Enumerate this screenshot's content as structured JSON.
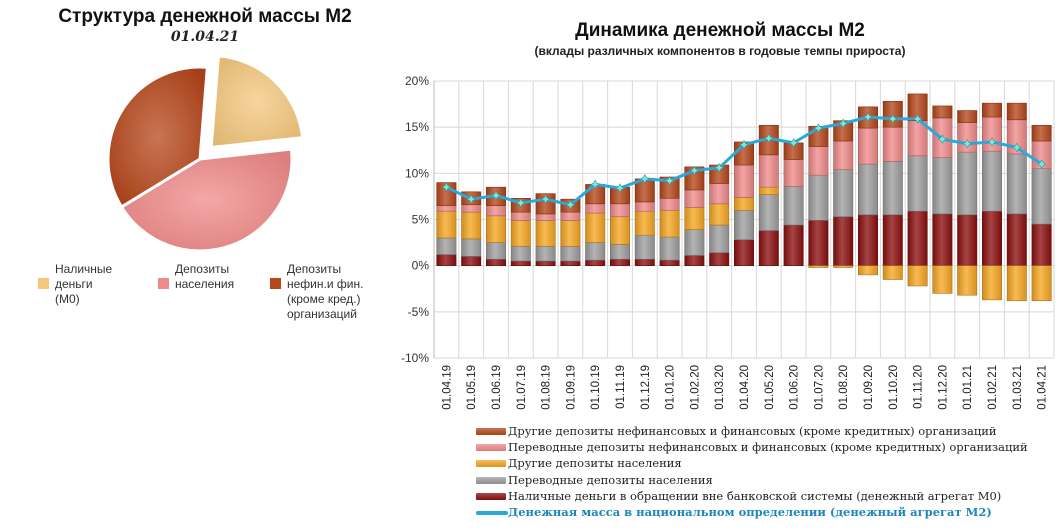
{
  "pie": {
    "title": "Структура денежной массы М2",
    "date": "01.04.21",
    "legend": [
      {
        "label": "Наличные\nденьги\n(М0)",
        "color": "#f5c77e"
      },
      {
        "label": "Депозиты\nнаселения",
        "color": "#f08a8a"
      },
      {
        "label": "Депозиты\nнефин.и фин.\n(кроме кред.)\nорганизаций",
        "color": "#b5471b"
      }
    ]
  },
  "bar": {
    "title": "Динамика денежной массы М2",
    "subtitle": "(вклады различных компонентов в годовые темпы прироста)",
    "legend": [
      {
        "label": "Другие депозиты нефинансовых и финансовых (кроме кредитных)  организаций",
        "color": "#b5471b",
        "kind": "bar"
      },
      {
        "label": "Переводные депозиты нефинансовых и финансовых (кроме кредитных)  организаций",
        "color": "#f08a8a",
        "kind": "bar"
      },
      {
        "label": "Другие депозиты населения",
        "color": "#f5a623",
        "kind": "bar"
      },
      {
        "label": "Переводные депозиты населения",
        "color": "#9e9e9e",
        "kind": "bar"
      },
      {
        "label": "Наличные деньги в обращении вне банковской системы (денежный агрегат М0)",
        "color": "#8b0f0f",
        "kind": "bar"
      },
      {
        "label": "Денежная масса в национальном  определении  (денежный агрегат М2)",
        "color": "#2aa8d8",
        "kind": "line"
      }
    ]
  },
  "chart_data": [
    {
      "type": "pie",
      "title": "Структура денежной массы М2",
      "subtitle": "01.04.21",
      "categories": [
        "Наличные деньги (М0)",
        "Депозиты населения",
        "Депозиты нефин.и фин. (кроме кред.) организаций"
      ],
      "values": [
        22,
        43,
        35
      ],
      "colors": [
        "#f5c77e",
        "#f08a8a",
        "#b5471b"
      ],
      "exploded": 0
    },
    {
      "type": "bar",
      "stacked": true,
      "title": "Динамика денежной массы М2",
      "subtitle": "(вклады различных компонентов в годовые темпы прироста)",
      "categories": [
        "01.04.19",
        "01.05.19",
        "01.06.19",
        "01.07.19",
        "01.08.19",
        "01.09.19",
        "01.10.19",
        "01.11.19",
        "01.12.19",
        "01.01.20",
        "01.02.20",
        "01.03.20",
        "01.04.20",
        "01.05.20",
        "01.06.20",
        "01.07.20",
        "01.08.20",
        "01.09.20",
        "01.10.20",
        "01.11.20",
        "01.12.20",
        "01.01.21",
        "01.02.21",
        "01.03.21",
        "01.04.21"
      ],
      "ylim": [
        -10,
        20
      ],
      "yticks": [
        -10,
        -5,
        0,
        5,
        10,
        15,
        20
      ],
      "ytick_labels": [
        "-10%",
        "-5%",
        "0%",
        "5%",
        "10%",
        "15%",
        "20%"
      ],
      "grid": true,
      "series": [
        {
          "name": "Наличные деньги в обращении вне банковской системы (денежный агрегат М0)",
          "color": "#8b0f0f",
          "values": [
            1.2,
            1.0,
            0.7,
            0.5,
            0.5,
            0.5,
            0.6,
            0.7,
            0.7,
            0.6,
            1.1,
            1.4,
            2.8,
            3.8,
            4.4,
            4.9,
            5.3,
            5.5,
            5.5,
            5.9,
            5.6,
            5.5,
            5.9,
            5.6,
            4.5
          ]
        },
        {
          "name": "Переводные депозиты населения",
          "color": "#9e9e9e",
          "values": [
            1.8,
            1.9,
            1.8,
            1.6,
            1.6,
            1.6,
            1.9,
            1.6,
            2.6,
            2.5,
            2.8,
            3.0,
            3.2,
            3.9,
            4.2,
            4.9,
            5.1,
            5.5,
            5.8,
            6.0,
            6.1,
            6.8,
            6.5,
            6.5,
            6.0
          ]
        },
        {
          "name": "Другие депозиты населения",
          "color": "#f5a623",
          "values": [
            2.9,
            2.9,
            2.9,
            2.8,
            2.8,
            2.8,
            3.2,
            3.0,
            2.6,
            2.9,
            2.4,
            2.3,
            1.4,
            0.8,
            0.0,
            -0.2,
            -0.2,
            -1.0,
            -1.5,
            -2.2,
            -3.0,
            -3.2,
            -3.7,
            -3.8,
            -3.8
          ]
        },
        {
          "name": "Переводные депозиты нефинансовых и финансовых (кроме кредитных)  организаций",
          "color": "#f08a8a",
          "values": [
            0.6,
            0.8,
            1.1,
            0.9,
            0.7,
            0.9,
            1.0,
            1.4,
            1.0,
            1.3,
            1.9,
            2.2,
            3.5,
            3.5,
            2.9,
            3.1,
            3.1,
            3.9,
            3.7,
            3.8,
            4.3,
            3.2,
            3.7,
            3.7,
            3.0
          ]
        },
        {
          "name": "Другие депозиты нефинансовых и финансовых (кроме кредитных)  организаций",
          "color": "#b5471b",
          "values": [
            2.5,
            1.4,
            2.0,
            1.5,
            2.2,
            1.4,
            2.1,
            1.8,
            2.5,
            2.3,
            2.5,
            2.0,
            2.5,
            3.2,
            1.8,
            2.2,
            2.2,
            2.3,
            2.8,
            2.9,
            1.3,
            1.3,
            1.5,
            1.8,
            1.7
          ]
        }
      ],
      "line": {
        "name": "Денежная масса в национальном  определении  (денежный агрегат М2)",
        "color": "#2aa8d8",
        "marker_color": "#7fe8e0",
        "values": [
          8.5,
          7.2,
          7.6,
          6.8,
          7.2,
          6.6,
          8.8,
          8.4,
          9.4,
          9.2,
          10.3,
          10.6,
          13.1,
          13.8,
          13.3,
          14.9,
          15.4,
          16.1,
          15.9,
          15.9,
          13.7,
          13.2,
          13.4,
          12.8,
          11.0
        ]
      }
    }
  ]
}
